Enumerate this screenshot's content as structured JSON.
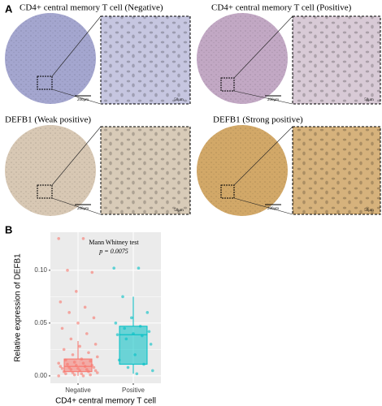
{
  "panel_labels": [
    "A",
    "B"
  ],
  "panels": [
    {
      "title": "CD4+ central memory T cell (Negative)",
      "scale_overview": "200μm",
      "scale_zoom": "50μm"
    },
    {
      "title": "CD4+ central memory T cell (Positive)",
      "scale_overview": "200μm",
      "scale_zoom": "50μm"
    },
    {
      "title": "DEFB1 (Weak positive)",
      "scale_overview": "200μm",
      "scale_zoom": "50μm"
    },
    {
      "title": "DEFB1 (Strong positive)",
      "scale_overview": "200μm",
      "scale_zoom": "50μm"
    }
  ],
  "chart_data": {
    "type": "box",
    "ylabel": "Relative expression of DEFB1",
    "xlabel": "CD4+ central memory T cell",
    "annotation": [
      "Mann Whitney test",
      "p = 0.0075"
    ],
    "categories": [
      "Negative",
      "Positive"
    ],
    "ylim": [
      -0.007,
      0.136
    ],
    "yticks": [
      {
        "value": 0,
        "label": "0.00"
      },
      {
        "value": 0.05,
        "label": "0.05"
      },
      {
        "value": 0.1,
        "label": "0.10"
      }
    ],
    "grid": true,
    "boxes": [
      {
        "color": "#f8766d",
        "min": 0,
        "q1": 0.004,
        "median": 0.009,
        "q3": 0.016,
        "max": 0.033,
        "points": [
          0.13,
          0.13,
          0.1,
          0.098,
          0.08,
          0.07,
          0.065,
          0.06,
          0.055,
          0.05,
          0.045,
          0.04,
          0.035,
          0.03,
          0.028,
          0.025,
          0.022,
          0.02,
          0.018,
          0.016,
          0.015,
          0.014,
          0.013,
          0.012,
          0.012,
          0.011,
          0.01,
          0.01,
          0.009,
          0.009,
          0.008,
          0.008,
          0.007,
          0.007,
          0.006,
          0.006,
          0.005,
          0.005,
          0.004,
          0.004,
          0.003,
          0.003,
          0.002,
          0.002,
          0.001,
          0.001,
          0,
          0
        ]
      },
      {
        "color": "#00bfc4",
        "min": 0.002,
        "q1": 0.011,
        "median": 0.039,
        "q3": 0.047,
        "max": 0.075,
        "points": [
          0.102,
          0.102,
          0.075,
          0.06,
          0.055,
          0.05,
          0.047,
          0.045,
          0.042,
          0.04,
          0.039,
          0.038,
          0.035,
          0.03,
          0.02,
          0.015,
          0.011,
          0.008,
          0.005,
          0.002
        ]
      }
    ]
  }
}
